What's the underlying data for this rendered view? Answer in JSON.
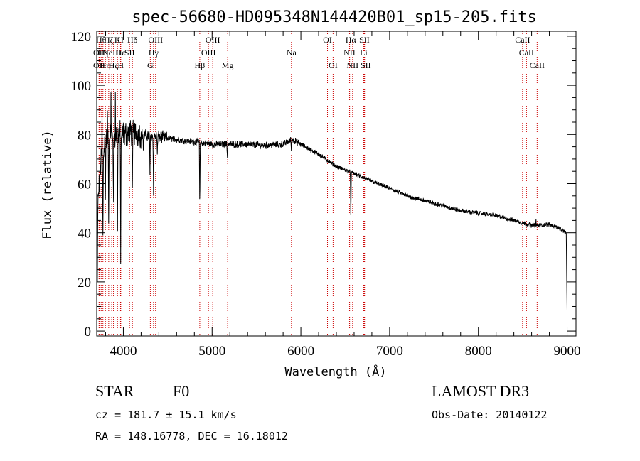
{
  "chart_data": {
    "type": "line",
    "title": "spec-56680-HD095348N144420B01_sp15-205.fits",
    "xlabel": "Wavelength (Å)",
    "ylabel": "Flux (relative)",
    "xlim": [
      3700,
      9100
    ],
    "ylim": [
      -2,
      122
    ],
    "xticks": [
      4000,
      5000,
      6000,
      7000,
      8000,
      9000
    ],
    "yticks": [
      0,
      20,
      40,
      60,
      80,
      100,
      120
    ],
    "continuum": {
      "x": [
        3700,
        3750,
        3800,
        3900,
        4000,
        4100,
        4200,
        4400,
        4600,
        4800,
        5000,
        5200,
        5400,
        5600,
        5800,
        5900,
        6000,
        6200,
        6400,
        6600,
        6800,
        7000,
        7200,
        7400,
        7600,
        7800,
        8000,
        8200,
        8400,
        8600,
        8700,
        8800,
        8900,
        8990,
        9000
      ],
      "y": [
        45,
        70,
        78,
        80,
        80,
        81,
        80,
        79,
        78,
        77,
        76,
        76,
        76,
        75.5,
        76,
        78,
        76,
        72,
        67,
        64,
        61,
        58,
        55,
        53,
        51,
        49,
        48,
        47,
        45,
        43,
        43,
        43.5,
        42,
        40,
        8
      ]
    },
    "absorption_lines": [
      {
        "x": 3770,
        "depth": 35
      },
      {
        "x": 3798,
        "depth": 22
      },
      {
        "x": 3835,
        "depth": 30
      },
      {
        "x": 3889,
        "depth": 35
      },
      {
        "x": 3934,
        "depth": 45
      },
      {
        "x": 3970,
        "depth": 48
      },
      {
        "x": 4102,
        "depth": 28
      },
      {
        "x": 4227,
        "depth": 8
      },
      {
        "x": 4300,
        "depth": 15
      },
      {
        "x": 4340,
        "depth": 25
      },
      {
        "x": 4383,
        "depth": 8
      },
      {
        "x": 4861,
        "depth": 28
      },
      {
        "x": 5172,
        "depth": 6
      },
      {
        "x": 5893,
        "depth": 4
      },
      {
        "x": 6563,
        "depth": 18
      }
    ],
    "spikes": [
      {
        "x": 3760,
        "height": 15
      },
      {
        "x": 3820,
        "height": 12
      },
      {
        "x": 3860,
        "height": 20
      },
      {
        "x": 3910,
        "height": 14
      },
      {
        "x": 8650,
        "height": 2
      }
    ],
    "line_markers": [
      {
        "x": 3727,
        "row": 1,
        "label": "OII"
      },
      {
        "x": 3727,
        "row": 2,
        "label": "OII"
      },
      {
        "x": 3750,
        "row": 0,
        "label": "Hθ"
      },
      {
        "x": 3770,
        "row": 1,
        "label": "Hη"
      },
      {
        "x": 3798,
        "row": 2,
        "label": "Hη"
      },
      {
        "x": 3835,
        "row": 0,
        "label": "Hζ"
      },
      {
        "x": 3869,
        "row": 1,
        "label": "NeIII"
      },
      {
        "x": 3889,
        "row": 2,
        "label": "Hζ"
      },
      {
        "x": 3934,
        "row": 0,
        "label": "K"
      },
      {
        "x": 3968,
        "row": 0,
        "label": "H"
      },
      {
        "x": 3970,
        "row": 1,
        "label": "Hε"
      },
      {
        "x": 3970,
        "row": 2,
        "label": "H"
      },
      {
        "x": 4070,
        "row": 1,
        "label": "SII"
      },
      {
        "x": 4102,
        "row": 0,
        "label": "Hδ"
      },
      {
        "x": 4304,
        "row": 2,
        "label": "G"
      },
      {
        "x": 4340,
        "row": 1,
        "label": "Hγ"
      },
      {
        "x": 4363,
        "row": 0,
        "label": "OIII"
      },
      {
        "x": 4861,
        "row": 2,
        "label": "Hβ"
      },
      {
        "x": 4959,
        "row": 1,
        "label": "OIII"
      },
      {
        "x": 5007,
        "row": 0,
        "label": "OIII"
      },
      {
        "x": 5175,
        "row": 2,
        "label": "Mg"
      },
      {
        "x": 5894,
        "row": 1,
        "label": "Na"
      },
      {
        "x": 6300,
        "row": 0,
        "label": "OI"
      },
      {
        "x": 6363,
        "row": 2,
        "label": "OI"
      },
      {
        "x": 6548,
        "row": 1,
        "label": "NII"
      },
      {
        "x": 6563,
        "row": 0,
        "label": "Hα"
      },
      {
        "x": 6583,
        "row": 2,
        "label": "NII"
      },
      {
        "x": 6708,
        "row": 1,
        "label": "Li"
      },
      {
        "x": 6716,
        "row": 0,
        "label": "SII"
      },
      {
        "x": 6731,
        "row": 2,
        "label": "SII"
      },
      {
        "x": 8498,
        "row": 0,
        "label": "CaII"
      },
      {
        "x": 8542,
        "row": 1,
        "label": "CaII"
      },
      {
        "x": 8662,
        "row": 2,
        "label": "CaII"
      }
    ]
  },
  "info": {
    "object_class": "STAR",
    "subclass": "F0",
    "survey": "LAMOST DR3",
    "redshift": "cz = 181.7 ± 15.1 km/s",
    "obs_date": "Obs-Date: 20140122",
    "coords": "RA = 148.16778, DEC =  16.18012"
  },
  "colors": {
    "foreground": "#000000",
    "marker": "#cc0000",
    "background": "#ffffff"
  }
}
